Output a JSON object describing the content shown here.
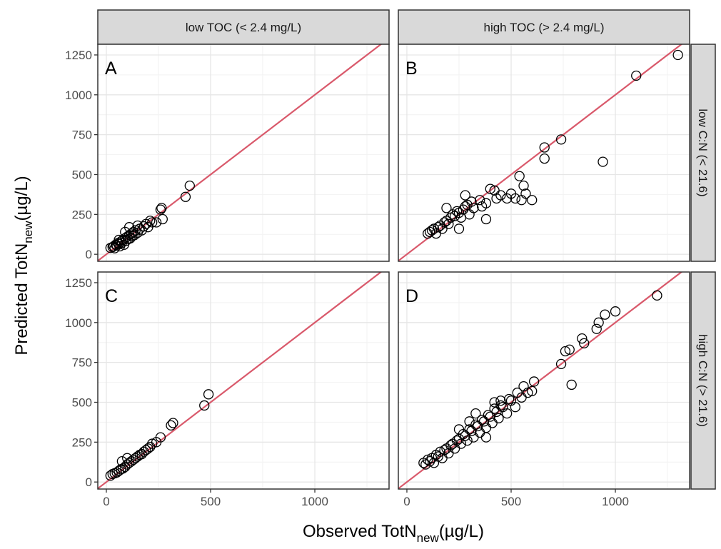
{
  "facets": {
    "columns": [
      "low TOC (< 2.4 mg/L)",
      "high TOC (> 2.4 mg/L)"
    ],
    "rows": [
      "low C:N (< 21.6)",
      "high C:N (> 21.6)"
    ],
    "x_label": {
      "text": "Observed TotN",
      "subscript": "new",
      "unit": "(µg/L)"
    },
    "y_label": {
      "text": "Predicted TotN",
      "subscript": "new",
      "unit": "(µg/L)"
    }
  },
  "chart_data": [
    {
      "type": "scatter",
      "tag": "A",
      "color": "#000000",
      "line_color": "#d9596b",
      "identity_line": true,
      "grid": true,
      "xlim": [
        -41,
        1356
      ],
      "ylim": [
        -44,
        1317
      ],
      "xticks": [
        0,
        500,
        1000
      ],
      "yticks": [
        0,
        250,
        500,
        750,
        1000,
        1250
      ],
      "x": [
        20,
        30,
        35,
        40,
        45,
        50,
        55,
        60,
        65,
        70,
        75,
        80,
        85,
        90,
        95,
        100,
        105,
        110,
        115,
        120,
        125,
        130,
        135,
        140,
        150,
        160,
        170,
        180,
        190,
        200,
        210,
        220,
        240,
        260,
        270,
        265,
        380,
        400,
        110,
        90,
        60,
        150
      ],
      "values": [
        40,
        45,
        50,
        38,
        60,
        55,
        70,
        65,
        50,
        80,
        72,
        90,
        60,
        100,
        85,
        110,
        95,
        120,
        100,
        130,
        115,
        140,
        120,
        150,
        135,
        160,
        150,
        175,
        190,
        170,
        210,
        200,
        200,
        280,
        220,
        290,
        360,
        430,
        170,
        140,
        90,
        180
      ]
    },
    {
      "type": "scatter",
      "tag": "B",
      "color": "#000000",
      "line_color": "#d9596b",
      "identity_line": true,
      "grid": true,
      "xlim": [
        -41,
        1356
      ],
      "ylim": [
        -44,
        1317
      ],
      "xticks": [
        0,
        500,
        1000
      ],
      "yticks": [
        0,
        250,
        500,
        750,
        1000,
        1250
      ],
      "x": [
        100,
        110,
        120,
        130,
        140,
        150,
        160,
        170,
        180,
        190,
        200,
        210,
        220,
        230,
        240,
        250,
        260,
        270,
        280,
        290,
        300,
        310,
        320,
        350,
        360,
        380,
        400,
        420,
        430,
        450,
        480,
        500,
        520,
        540,
        550,
        560,
        570,
        600,
        660,
        660,
        740,
        940,
        1100,
        1300,
        190,
        280,
        250,
        380
      ],
      "values": [
        130,
        140,
        150,
        160,
        130,
        170,
        180,
        160,
        200,
        210,
        190,
        230,
        250,
        240,
        270,
        260,
        230,
        280,
        300,
        310,
        250,
        330,
        290,
        340,
        300,
        320,
        410,
        400,
        350,
        370,
        350,
        380,
        350,
        490,
        340,
        430,
        380,
        340,
        670,
        600,
        720,
        580,
        1120,
        1250,
        290,
        370,
        160,
        220
      ]
    },
    {
      "type": "scatter",
      "tag": "C",
      "color": "#000000",
      "line_color": "#d9596b",
      "identity_line": true,
      "grid": true,
      "xlim": [
        -41,
        1356
      ],
      "ylim": [
        -44,
        1317
      ],
      "xticks": [
        0,
        500,
        1000
      ],
      "yticks": [
        0,
        250,
        500,
        750,
        1000,
        1250
      ],
      "x": [
        20,
        30,
        40,
        50,
        60,
        70,
        80,
        90,
        100,
        110,
        120,
        130,
        140,
        150,
        160,
        170,
        180,
        190,
        200,
        210,
        220,
        240,
        260,
        310,
        320,
        470,
        490,
        75,
        100
      ],
      "values": [
        40,
        50,
        55,
        60,
        70,
        80,
        85,
        95,
        110,
        120,
        130,
        140,
        150,
        160,
        170,
        175,
        190,
        200,
        210,
        220,
        240,
        250,
        280,
        355,
        370,
        480,
        550,
        130,
        150
      ]
    },
    {
      "type": "scatter",
      "tag": "D",
      "color": "#000000",
      "line_color": "#d9596b",
      "identity_line": true,
      "grid": true,
      "xlim": [
        -41,
        1356
      ],
      "ylim": [
        -44,
        1317
      ],
      "xticks": [
        0,
        500,
        1000
      ],
      "yticks": [
        0,
        250,
        500,
        750,
        1000,
        1250
      ],
      "x": [
        80,
        90,
        100,
        110,
        120,
        130,
        140,
        150,
        160,
        170,
        180,
        190,
        200,
        210,
        220,
        230,
        240,
        250,
        260,
        270,
        280,
        290,
        300,
        310,
        320,
        330,
        340,
        350,
        360,
        370,
        380,
        390,
        400,
        410,
        420,
        430,
        440,
        450,
        460,
        480,
        490,
        500,
        520,
        530,
        550,
        560,
        580,
        600,
        610,
        420,
        330,
        250,
        380,
        740,
        760,
        780,
        790,
        840,
        850,
        910,
        920,
        950,
        1000,
        1200,
        300,
        450
      ],
      "values": [
        120,
        110,
        140,
        130,
        150,
        120,
        170,
        160,
        190,
        150,
        200,
        210,
        180,
        230,
        240,
        210,
        260,
        270,
        240,
        300,
        290,
        260,
        330,
        320,
        280,
        360,
        350,
        310,
        390,
        380,
        340,
        420,
        410,
        370,
        460,
        440,
        400,
        480,
        470,
        430,
        520,
        510,
        470,
        560,
        530,
        600,
        560,
        570,
        630,
        500,
        430,
        330,
        280,
        740,
        820,
        830,
        610,
        900,
        870,
        960,
        1000,
        1050,
        1070,
        1170,
        380,
        510
      ]
    }
  ]
}
